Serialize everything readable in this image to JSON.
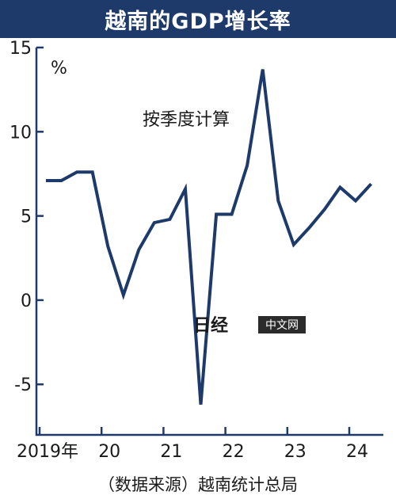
{
  "chart_data": {
    "type": "line",
    "title": "越南的GDP增长率",
    "unit": "%",
    "note": "按季度计算",
    "source": "（数据来源）越南统计总局",
    "ylim": [
      -8,
      15
    ],
    "yticks": [
      15,
      10,
      5,
      0,
      -5
    ],
    "ytick_labels": [
      "15",
      "10",
      "5",
      "0",
      "-5"
    ],
    "xticks": [
      {
        "label": "2019年",
        "q": 0
      },
      {
        "label": "20",
        "q": 4
      },
      {
        "label": "21",
        "q": 8
      },
      {
        "label": "22",
        "q": 12
      },
      {
        "label": "23",
        "q": 16
      },
      {
        "label": "24",
        "q": 20
      }
    ],
    "grid": false,
    "line_color": "#1d3a6b",
    "series": [
      {
        "x": [
          "2019Q1",
          "2019Q2",
          "2019Q3",
          "2019Q4",
          "2020Q1",
          "2020Q2",
          "2020Q3",
          "2020Q4",
          "2021Q1",
          "2021Q2",
          "2021Q3",
          "2021Q4",
          "2022Q1",
          "2022Q2",
          "2022Q3",
          "2022Q4",
          "2023Q1",
          "2023Q2",
          "2023Q3",
          "2023Q4",
          "2024Q1",
          "2024Q2"
        ],
        "values": [
          7.1,
          7.1,
          7.6,
          7.6,
          3.2,
          0.3,
          3.0,
          4.6,
          4.8,
          6.6,
          -6.2,
          5.1,
          5.1,
          8.0,
          13.7,
          5.9,
          3.3,
          4.3,
          5.4,
          6.7,
          5.9,
          6.9
        ]
      }
    ],
    "watermark": {
      "brand": "日经",
      "label": "中文网"
    }
  }
}
